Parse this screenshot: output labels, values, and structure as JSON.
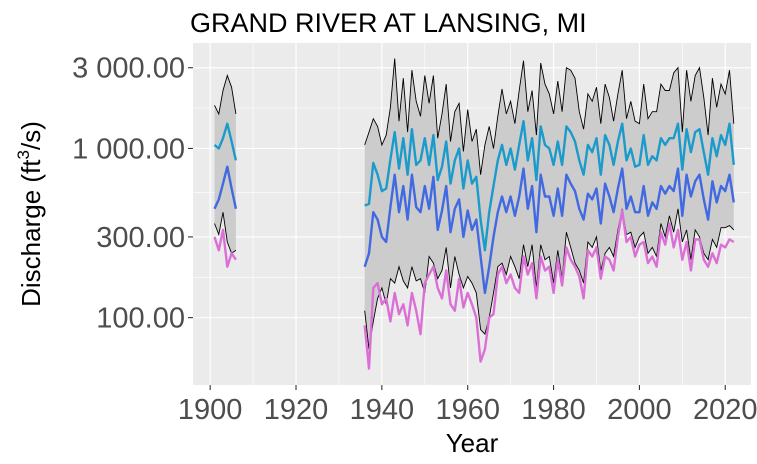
{
  "chart_data": {
    "type": "line",
    "title": "GRAND RIVER AT LANSING, MI",
    "xlabel": "Year",
    "ylabel": "Discharge (ft3/s)",
    "ylabel_parts": {
      "prefix": "Discharge (ft",
      "sup": "3",
      "slash": "/",
      "suffix": "s)"
    },
    "y_scale": "log10",
    "xlim": [
      1896,
      2026
    ],
    "ylim": [
      40,
      4200
    ],
    "x_ticks": [
      1900,
      1920,
      1940,
      1960,
      1980,
      2000,
      2020
    ],
    "y_ticks": [
      {
        "value": 100,
        "label": "100.00"
      },
      {
        "value": 300,
        "label": "300.00"
      },
      {
        "value": 1000,
        "label": "1 000.00"
      },
      {
        "value": 3000,
        "label": "3 000.00"
      }
    ],
    "grid": true,
    "legend": "none",
    "colors": {
      "panel": "#ebebeb",
      "grid": "#ffffff",
      "band_fill": "#cccccc",
      "band_edge": "#000000",
      "series_high": "#1a9bcb",
      "series_mid": "#4169e1",
      "series_low": "#da70d6"
    },
    "years": [
      1901,
      1902,
      1903,
      1904,
      1905,
      1906,
      1936,
      1937,
      1938,
      1939,
      1940,
      1941,
      1942,
      1943,
      1944,
      1945,
      1946,
      1947,
      1948,
      1949,
      1950,
      1951,
      1952,
      1953,
      1954,
      1955,
      1956,
      1957,
      1958,
      1959,
      1960,
      1961,
      1962,
      1963,
      1964,
      1965,
      1966,
      1967,
      1968,
      1969,
      1970,
      1971,
      1972,
      1973,
      1974,
      1975,
      1976,
      1977,
      1978,
      1979,
      1980,
      1981,
      1982,
      1983,
      1984,
      1985,
      1986,
      1987,
      1988,
      1989,
      1990,
      1991,
      1992,
      1993,
      1994,
      1995,
      1996,
      1997,
      1998,
      1999,
      2000,
      2001,
      2002,
      2003,
      2004,
      2005,
      2006,
      2007,
      2008,
      2009,
      2010,
      2011,
      2012,
      2013,
      2014,
      2015,
      2016,
      2017,
      2018,
      2019,
      2020,
      2021,
      2022
    ],
    "series": [
      {
        "key": "band_upper",
        "values": [
          1800,
          1600,
          2200,
          2700,
          2300,
          1600,
          1050,
          1250,
          1500,
          1350,
          1050,
          1200,
          1750,
          3400,
          1450,
          2600,
          1250,
          2900,
          1900,
          1550,
          2700,
          1850,
          2700,
          1150,
          1600,
          2400,
          1100,
          1650,
          1850,
          960,
          1700,
          1100,
          1300,
          700,
          1050,
          1350,
          1000,
          1550,
          2250,
          1600,
          1900,
          1400,
          2200,
          3300,
          1650,
          2200,
          1200,
          3200,
          2400,
          2100,
          1600,
          2500,
          1650,
          3000,
          2900,
          2600,
          1650,
          1300,
          2100,
          1900,
          2300,
          1400,
          2400,
          2000,
          1450,
          2100,
          2900,
          1500,
          1900,
          1450,
          1400,
          2400,
          1500,
          1650,
          1650,
          2400,
          2200,
          2200,
          2800,
          3000,
          1250,
          2900,
          1900,
          2700,
          3000,
          2000,
          1200,
          2600,
          1750,
          2400,
          2100,
          2900,
          1400
        ]
      },
      {
        "key": "band_lower",
        "values": [
          360,
          310,
          420,
          280,
          240,
          250,
          110,
          65,
          95,
          130,
          150,
          120,
          170,
          160,
          200,
          165,
          150,
          200,
          165,
          170,
          140,
          230,
          210,
          170,
          190,
          260,
          150,
          230,
          180,
          150,
          175,
          160,
          140,
          85,
          80,
          100,
          140,
          200,
          210,
          180,
          230,
          200,
          170,
          270,
          200,
          270,
          150,
          270,
          220,
          230,
          160,
          250,
          170,
          320,
          260,
          210,
          190,
          160,
          280,
          260,
          300,
          190,
          240,
          260,
          230,
          330,
          440,
          310,
          320,
          260,
          300,
          320,
          240,
          260,
          230,
          360,
          300,
          400,
          320,
          440,
          280,
          330,
          220,
          330,
          300,
          240,
          220,
          290,
          260,
          340,
          340,
          350,
          330
        ]
      },
      {
        "name": "",
        "key": "high",
        "values": [
          1050,
          1000,
          1150,
          1400,
          1100,
          850,
          460,
          470,
          820,
          700,
          560,
          580,
          860,
          1250,
          760,
          1150,
          700,
          1300,
          800,
          850,
          1150,
          800,
          1200,
          650,
          780,
          1100,
          620,
          850,
          1000,
          580,
          850,
          620,
          680,
          380,
          250,
          420,
          600,
          850,
          1050,
          800,
          1000,
          750,
          1050,
          1450,
          850,
          1150,
          650,
          1350,
          1050,
          1000,
          800,
          1100,
          800,
          1350,
          1250,
          1100,
          850,
          700,
          1050,
          950,
          1150,
          700,
          1200,
          1050,
          800,
          1100,
          1400,
          850,
          1000,
          780,
          800,
          1200,
          800,
          900,
          850,
          1150,
          1050,
          1150,
          1150,
          1400,
          750,
          1300,
          950,
          1250,
          1300,
          950,
          700,
          1150,
          900,
          1200,
          1050,
          1400,
          800
        ]
      },
      {
        "name": "",
        "key": "mid",
        "values": [
          440,
          500,
          620,
          780,
          580,
          440,
          200,
          240,
          420,
          380,
          300,
          280,
          450,
          700,
          420,
          600,
          380,
          700,
          450,
          420,
          600,
          440,
          680,
          330,
          430,
          600,
          320,
          440,
          500,
          300,
          430,
          330,
          380,
          230,
          140,
          200,
          300,
          420,
          520,
          420,
          520,
          400,
          520,
          760,
          440,
          600,
          320,
          700,
          520,
          520,
          400,
          580,
          400,
          700,
          620,
          560,
          440,
          380,
          540,
          500,
          580,
          360,
          620,
          520,
          420,
          580,
          760,
          440,
          520,
          420,
          420,
          600,
          400,
          480,
          440,
          600,
          540,
          600,
          560,
          760,
          400,
          700,
          520,
          640,
          700,
          500,
          380,
          640,
          480,
          600,
          560,
          700,
          480
        ]
      },
      {
        "name": "",
        "key": "low",
        "values": [
          300,
          250,
          330,
          200,
          240,
          220,
          90,
          50,
          150,
          160,
          120,
          130,
          95,
          140,
          105,
          120,
          90,
          140,
          110,
          80,
          160,
          180,
          200,
          150,
          130,
          190,
          120,
          110,
          170,
          115,
          140,
          120,
          100,
          55,
          65,
          100,
          105,
          180,
          200,
          160,
          180,
          150,
          140,
          230,
          180,
          210,
          130,
          230,
          190,
          200,
          140,
          220,
          155,
          260,
          220,
          200,
          175,
          130,
          250,
          230,
          260,
          170,
          230,
          220,
          190,
          300,
          430,
          280,
          300,
          230,
          270,
          280,
          210,
          230,
          200,
          320,
          270,
          360,
          260,
          330,
          220,
          280,
          190,
          290,
          290,
          220,
          200,
          240,
          210,
          270,
          260,
          290,
          280
        ]
      }
    ]
  }
}
